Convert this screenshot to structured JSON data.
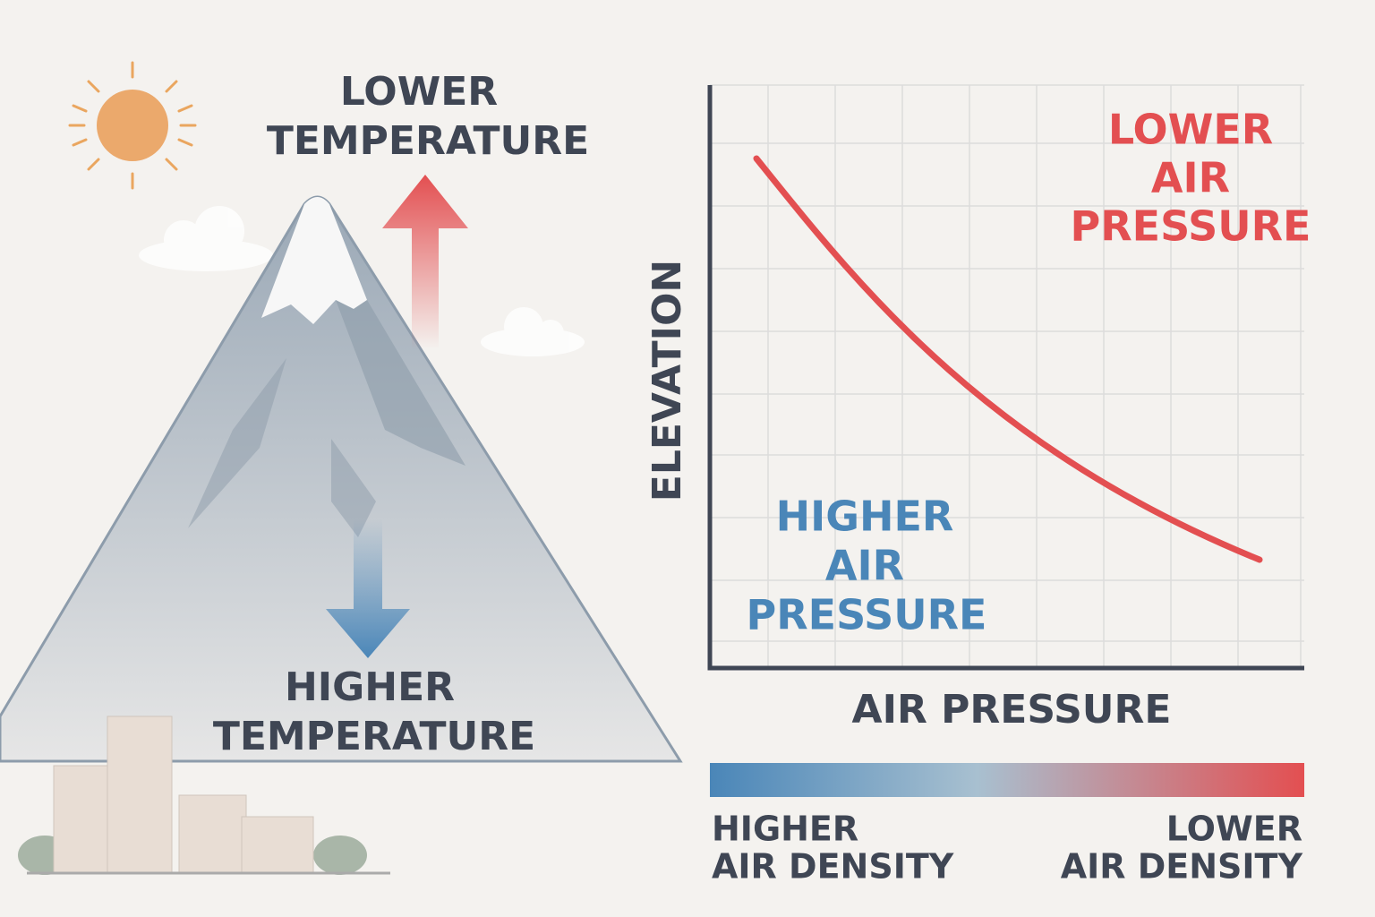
{
  "left": {
    "top_label": [
      "LOWER",
      "TEMPERATURE"
    ],
    "bottom_label": [
      "HIGHER",
      "TEMPERATURE"
    ]
  },
  "chart": {
    "y_axis_label": "ELEVATION",
    "x_axis_label": "AIR PRESSURE",
    "upper_note": [
      "LOWER",
      "AIR",
      "PRESSURE"
    ],
    "lower_note": [
      "HIGHER",
      "AIR",
      "PRESSURE"
    ]
  },
  "density_scale": {
    "left_label": [
      "HIGHER",
      "AIR DENSITY"
    ],
    "right_label": [
      "LOWER",
      "AIR DENSITY"
    ]
  }
}
